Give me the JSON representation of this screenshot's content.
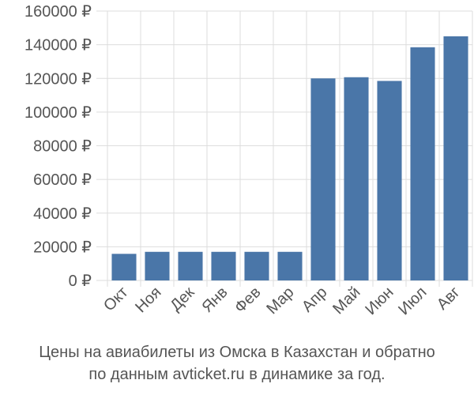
{
  "chart_data": {
    "type": "bar",
    "categories": [
      "Окт",
      "Ноя",
      "Дек",
      "Янв",
      "Фев",
      "Мар",
      "Апр",
      "Май",
      "Июн",
      "Июл",
      "Авг"
    ],
    "values": [
      15800,
      17000,
      17000,
      17000,
      17000,
      17000,
      120000,
      120700,
      118500,
      138500,
      145000
    ],
    "ylim": [
      0,
      160000
    ],
    "yticks": [
      0,
      20000,
      40000,
      60000,
      80000,
      100000,
      120000,
      140000,
      160000
    ],
    "ytick_labels": [
      "0 ₽",
      "20000 ₽",
      "40000 ₽",
      "60000 ₽",
      "80000 ₽",
      "100000 ₽",
      "120000 ₽",
      "140000 ₽",
      "160000 ₽"
    ],
    "grid": true,
    "bar_color": "#4a76a8",
    "grid_color": "#dddddd",
    "text_color": "#555555",
    "caption_line1": "Цены на авиабилеты из Омска в Казахстан и обратно",
    "caption_line2": "по данным avticket.ru в динамике за год."
  }
}
